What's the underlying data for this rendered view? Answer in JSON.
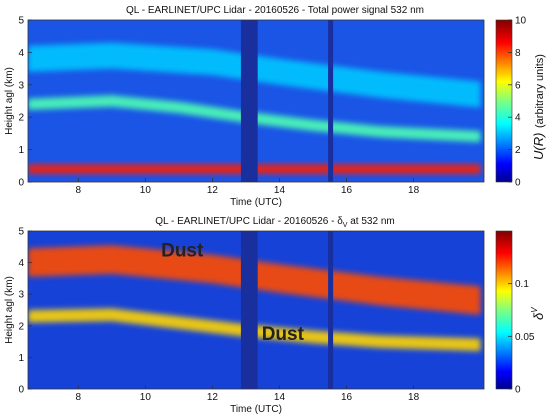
{
  "chart_data": [
    {
      "type": "heatmap",
      "title": "QL - EARLINET/UPC Lidar - 20160526 - Total power signal 532 nm",
      "xlabel": "Time (UTC)",
      "ylabel": "Height agl (km)",
      "xlim": [
        6.5,
        20.1
      ],
      "ylim": [
        0,
        5
      ],
      "xticks": [
        {
          "v": 8,
          "label": "8"
        },
        {
          "v": 10,
          "label": "10"
        },
        {
          "v": 12,
          "label": "12"
        },
        {
          "v": 14,
          "label": "14"
        },
        {
          "v": 16,
          "label": "16"
        },
        {
          "v": 18,
          "label": "18"
        }
      ],
      "yticks": [
        {
          "v": 0,
          "label": "0"
        },
        {
          "v": 1,
          "label": "1"
        },
        {
          "v": 2,
          "label": "2"
        },
        {
          "v": 3,
          "label": "3"
        },
        {
          "v": 4,
          "label": "4"
        },
        {
          "v": 5,
          "label": "5"
        }
      ],
      "colorbar": {
        "label": "U(R)",
        "unit": "(arbitrary units)",
        "range": [
          0,
          10
        ],
        "ticks": [
          {
            "v": 0,
            "label": "0"
          },
          {
            "v": 2,
            "label": "2"
          },
          {
            "v": 4,
            "label": "4"
          },
          {
            "v": 6,
            "label": "6"
          },
          {
            "v": 8,
            "label": "8"
          },
          {
            "v": 10,
            "label": "10"
          }
        ]
      },
      "layers": [
        {
          "feature": "upper aerosol layer",
          "points": [
            [
              6.5,
              3.8
            ],
            [
              9,
              3.9
            ],
            [
              12,
              3.7
            ],
            [
              14,
              3.4
            ],
            [
              17,
              3.0
            ],
            [
              20,
              2.7
            ]
          ],
          "thickness": 0.8,
          "value": 3.2
        },
        {
          "feature": "lower aerosol layer",
          "points": [
            [
              6.5,
              2.4
            ],
            [
              9,
              2.5
            ],
            [
              11,
              2.3
            ],
            [
              13,
              2.0
            ],
            [
              15,
              1.75
            ],
            [
              17,
              1.55
            ],
            [
              20,
              1.4
            ]
          ],
          "thickness": 0.35,
          "value": 4.5
        },
        {
          "feature": "surface layer",
          "points": [
            [
              6.5,
              0.4
            ],
            [
              20,
              0.4
            ]
          ],
          "thickness": 0.3,
          "value": 8.5
        }
      ],
      "gaps": [
        {
          "start": 12.85,
          "end": 13.35
        },
        {
          "start": 15.45,
          "end": 15.6
        }
      ]
    },
    {
      "type": "heatmap",
      "title": "QL - EARLINET/UPC Lidar - 20160526 - δ",
      "title_sub": "V",
      "title_end": " at 532 nm",
      "xlabel": "Time (UTC)",
      "ylabel": "Height agl (km)",
      "xlim": [
        6.5,
        20.1
      ],
      "ylim": [
        0,
        5
      ],
      "xticks": [
        {
          "v": 8,
          "label": "8"
        },
        {
          "v": 10,
          "label": "10"
        },
        {
          "v": 12,
          "label": "12"
        },
        {
          "v": 14,
          "label": "14"
        },
        {
          "v": 16,
          "label": "16"
        },
        {
          "v": 18,
          "label": "18"
        }
      ],
      "yticks": [
        {
          "v": 0,
          "label": "0"
        },
        {
          "v": 1,
          "label": "1"
        },
        {
          "v": 2,
          "label": "2"
        },
        {
          "v": 3,
          "label": "3"
        },
        {
          "v": 4,
          "label": "4"
        },
        {
          "v": 5,
          "label": "5"
        }
      ],
      "colorbar": {
        "label": "δ",
        "label_sup": "V",
        "unit": "",
        "range": [
          0,
          0.15
        ],
        "ticks": [
          {
            "v": 0,
            "label": "0"
          },
          {
            "v": 0.05,
            "label": "0.05"
          },
          {
            "v": 0.1,
            "label": "0.1"
          }
        ]
      },
      "layers": [
        {
          "feature": "upper dust layer",
          "points": [
            [
              6.5,
              4.0
            ],
            [
              9,
              4.1
            ],
            [
              12,
              3.8
            ],
            [
              14,
              3.5
            ],
            [
              17,
              3.1
            ],
            [
              20,
              2.8
            ]
          ],
          "thickness": 0.9,
          "value": 0.12
        },
        {
          "feature": "lower dust layer",
          "points": [
            [
              6.5,
              2.3
            ],
            [
              9,
              2.35
            ],
            [
              11,
              2.1
            ],
            [
              13,
              1.85
            ],
            [
              15,
              1.65
            ],
            [
              17,
              1.5
            ],
            [
              20,
              1.4
            ]
          ],
          "thickness": 0.4,
          "value": 0.1
        }
      ],
      "annotations": [
        {
          "text": "Dust",
          "x": 11.1,
          "y": 4.2
        },
        {
          "text": "Dust",
          "x": 14.1,
          "y": 1.55
        }
      ],
      "gaps": [
        {
          "start": 12.85,
          "end": 13.35
        },
        {
          "start": 15.45,
          "end": 15.6
        }
      ]
    }
  ]
}
